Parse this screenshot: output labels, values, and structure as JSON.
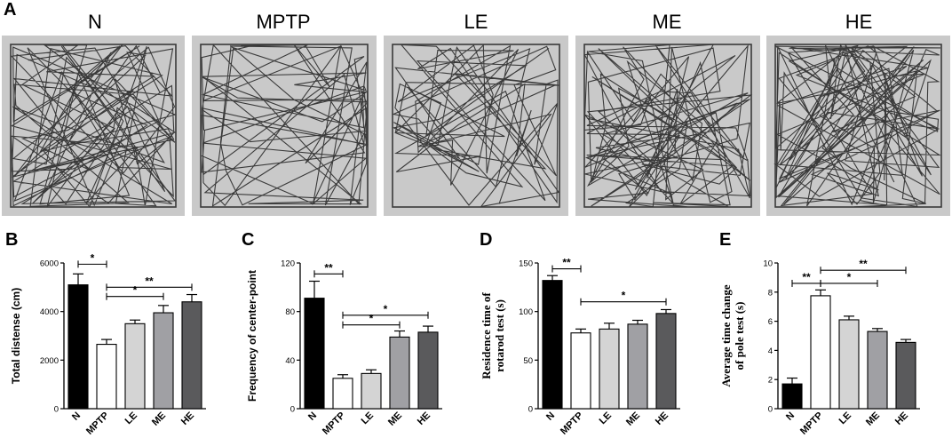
{
  "panel_a": {
    "letter": "A",
    "arenas": [
      "N",
      "MPTP",
      "LE",
      "ME",
      "HE"
    ]
  },
  "chart_data": [
    {
      "panel": "B",
      "type": "bar",
      "ylabel": "Total distense (cm)",
      "ylabel_font": "sans",
      "categories": [
        "N",
        "MPTP",
        "LE",
        "ME",
        "HE"
      ],
      "values": [
        5100,
        2650,
        3500,
        3950,
        4400
      ],
      "errors": [
        450,
        200,
        150,
        300,
        300
      ],
      "ylim": [
        0,
        6000
      ],
      "yticks": [
        0,
        2000,
        4000,
        6000
      ],
      "sig": [
        {
          "from": 0,
          "to": 1,
          "y": 5950,
          "label": "*"
        },
        {
          "from": 1,
          "to": 3,
          "y": 4620,
          "label": "*"
        },
        {
          "from": 1,
          "to": 4,
          "y": 5000,
          "label": "**"
        }
      ]
    },
    {
      "panel": "C",
      "type": "bar",
      "ylabel": "Frequency of center-point",
      "ylabel_font": "sans",
      "categories": [
        "N",
        "MPTP",
        "LE",
        "ME",
        "HE"
      ],
      "values": [
        91,
        25,
        29,
        59,
        63
      ],
      "errors": [
        14,
        3,
        3,
        5,
        5
      ],
      "ylim": [
        0,
        120
      ],
      "yticks": [
        0,
        40,
        80,
        120
      ],
      "sig": [
        {
          "from": 0,
          "to": 1,
          "y": 111,
          "label": "**"
        },
        {
          "from": 1,
          "to": 3,
          "y": 69,
          "label": "*"
        },
        {
          "from": 1,
          "to": 4,
          "y": 77,
          "label": "*"
        }
      ]
    },
    {
      "panel": "D",
      "type": "bar",
      "ylabel": "Residence time of\nrotarod test (s)",
      "ylabel_font": "serif",
      "categories": [
        "N",
        "MPTP",
        "LE",
        "ME",
        "HE"
      ],
      "values": [
        132,
        78,
        82,
        87,
        98
      ],
      "errors": [
        5,
        4,
        6,
        4,
        4
      ],
      "ylim": [
        0,
        150
      ],
      "yticks": [
        0,
        50,
        100,
        150
      ],
      "sig": [
        {
          "from": 0,
          "to": 1,
          "y": 144,
          "label": "**"
        },
        {
          "from": 1,
          "to": 4,
          "y": 110,
          "label": "*"
        }
      ]
    },
    {
      "panel": "E",
      "type": "bar",
      "ylabel": "Average time change\nof pole test (s)",
      "ylabel_font": "serif",
      "categories": [
        "N",
        "MPTP",
        "LE",
        "ME",
        "HE"
      ],
      "values": [
        1.7,
        7.75,
        6.1,
        5.3,
        4.55
      ],
      "errors": [
        0.4,
        0.4,
        0.25,
        0.2,
        0.2
      ],
      "ylim": [
        0,
        10
      ],
      "yticks": [
        0,
        2,
        4,
        6,
        8,
        10
      ],
      "sig": [
        {
          "from": 0,
          "to": 1,
          "y": 8.6,
          "label": "**"
        },
        {
          "from": 1,
          "to": 3,
          "y": 8.6,
          "label": "*"
        },
        {
          "from": 1,
          "to": 4,
          "y": 9.5,
          "label": "**"
        }
      ]
    }
  ],
  "bar_colors": [
    "#000000",
    "#ffffff",
    "#d4d4d4",
    "#a0a0a4",
    "#5a5a5c"
  ],
  "arena_color": "#c9c9c9",
  "trace_color": "#3a3a3a"
}
